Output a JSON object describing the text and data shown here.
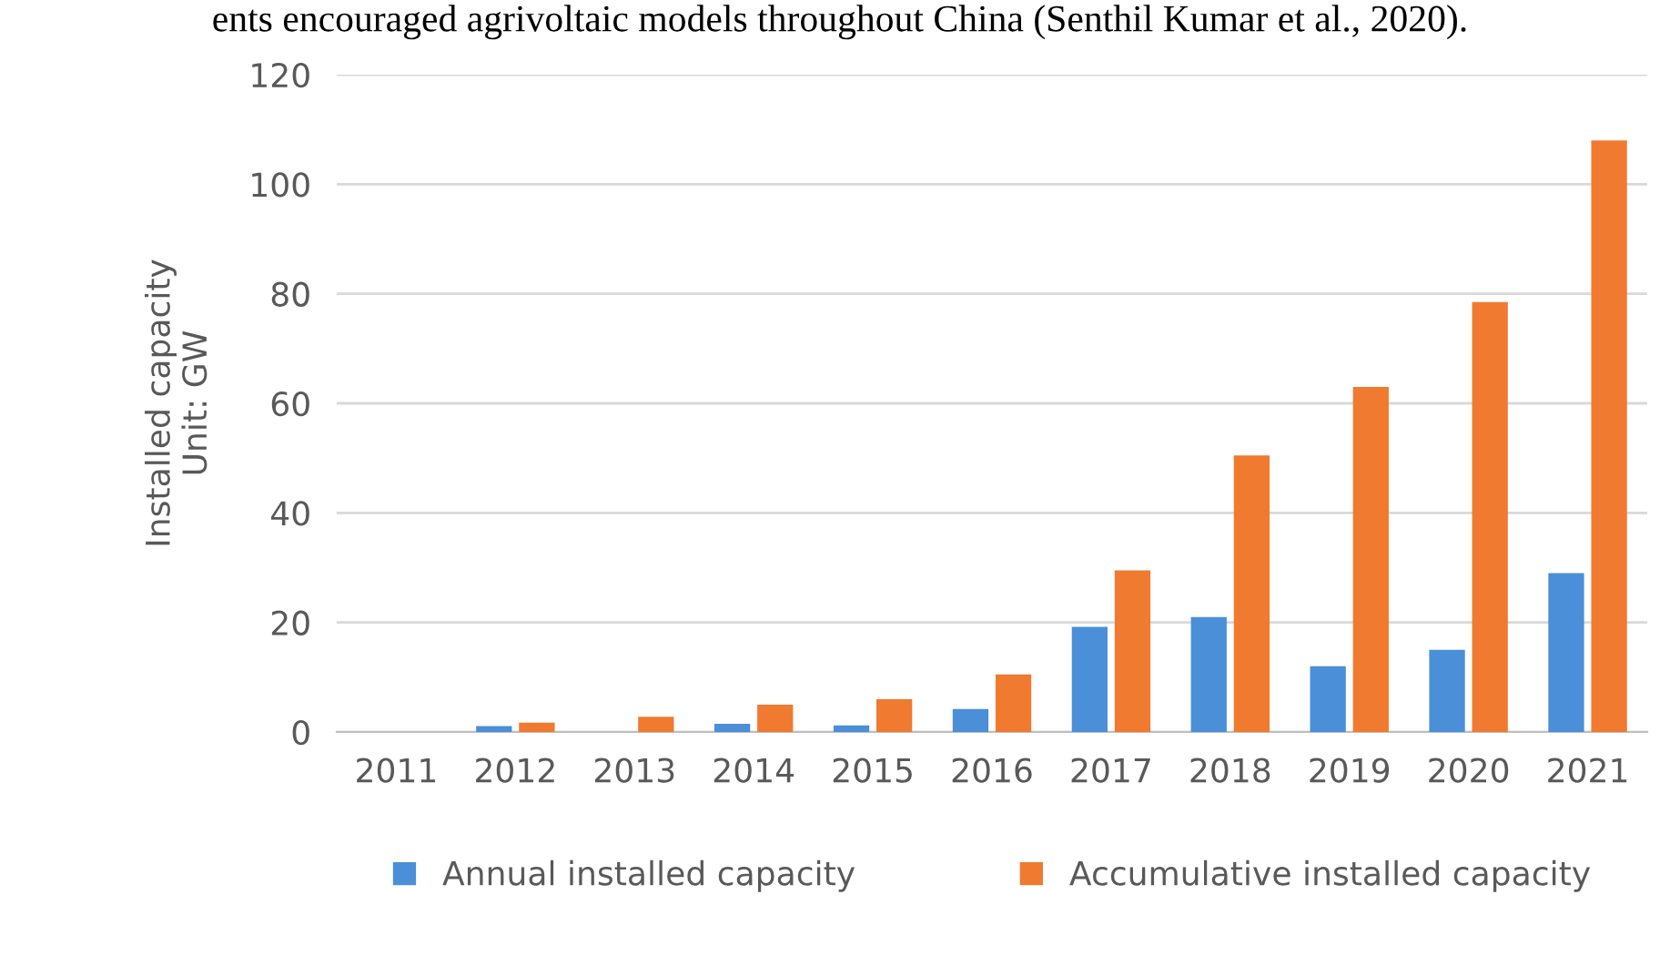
{
  "chart_data": {
    "type": "bar",
    "ylabel": "Installed capacity\nUnit: GW",
    "categories": [
      "2011",
      "2012",
      "2013",
      "2014",
      "2015",
      "2016",
      "2017",
      "2018",
      "2019",
      "2020",
      "2021"
    ],
    "series": [
      {
        "name": "Annual installed capacity",
        "color": "#4a8fd8",
        "values": [
          0,
          1.1,
          0,
          1.5,
          1.2,
          4.2,
          19.2,
          21,
          12,
          15,
          29
        ]
      },
      {
        "name": "Accumulative installed capacity",
        "color": "#f07a30",
        "values": [
          0,
          1.7,
          2.8,
          5,
          6,
          10.5,
          29.5,
          50.5,
          63,
          78.5,
          108
        ]
      }
    ],
    "ylim": [
      0,
      120
    ],
    "yticks": [
      0,
      20,
      40,
      60,
      80,
      100,
      120
    ],
    "grid": "y",
    "legend": "bottom",
    "annotations": [
      "ents encouraged agrivoltaic models throughout China (Senthil Kumar et al., 2020)."
    ]
  }
}
